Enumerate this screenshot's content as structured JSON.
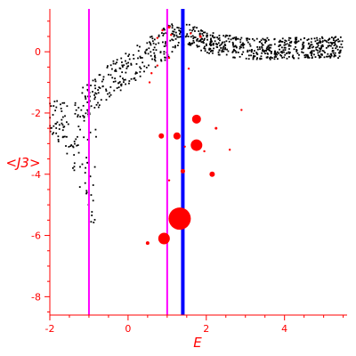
{
  "chart_data": {
    "type": "scatter",
    "title": "",
    "xlabel": "E",
    "ylabel": "<J3>",
    "xlim": [
      -2.0,
      5.6
    ],
    "ylim": [
      -8.6,
      1.4
    ],
    "xticks": [
      -2,
      0,
      2,
      4
    ],
    "yticks": [
      -8,
      -6,
      -4,
      -2,
      0
    ],
    "grid": false,
    "axis_color": "#ff0000",
    "vertical_lines": [
      {
        "x": -1.0,
        "color": "#ff00ff"
      },
      {
        "x": 1.0,
        "color": "#ff00ff"
      },
      {
        "x": 1.4,
        "color": "#0000ff"
      }
    ],
    "series": [
      {
        "marker": "small-dot",
        "color": "#000000",
        "count": 900,
        "description_curve": [
          [
            -2.0,
            -2.65
          ],
          [
            -1.5,
            -3.5
          ],
          [
            -1.0,
            -5.3
          ],
          [
            -0.8,
            -6.4
          ]
        ],
        "upper_branch": [
          [
            -1.0,
            -1.6
          ],
          [
            -0.5,
            -0.95
          ],
          [
            0.0,
            -0.55
          ],
          [
            0.5,
            -0.1
          ],
          [
            1.0,
            0.3
          ],
          [
            1.5,
            0.6
          ],
          [
            2.0,
            0.3
          ],
          [
            3.0,
            0.1
          ],
          [
            4.0,
            0.1
          ],
          [
            5.5,
            0.15
          ]
        ],
        "spread": 0.35
      },
      {
        "marker": "circle",
        "color": "#ff0000",
        "points": [
          {
            "x": 0.88,
            "y": 0.7,
            "s": 1.2
          },
          {
            "x": 0.75,
            "y": 0.45,
            "s": 1.2
          },
          {
            "x": 1.05,
            "y": 0.8,
            "s": 1.5
          },
          {
            "x": 1.1,
            "y": 0.55,
            "s": 1.2
          },
          {
            "x": 1.6,
            "y": 0.6,
            "s": 1.2
          },
          {
            "x": 1.85,
            "y": 0.5,
            "s": 1.5
          },
          {
            "x": 0.75,
            "y": -0.45,
            "s": 1.2
          },
          {
            "x": 1.55,
            "y": -0.55,
            "s": 1.2
          },
          {
            "x": 0.6,
            "y": -0.7,
            "s": 1.2
          },
          {
            "x": 1.05,
            "y": -0.2,
            "s": 1.2
          },
          {
            "x": 0.55,
            "y": -1.0,
            "s": 1.2
          },
          {
            "x": 2.9,
            "y": -1.9,
            "s": 1.2
          },
          {
            "x": 1.75,
            "y": -2.2,
            "s": 5.0
          },
          {
            "x": 0.85,
            "y": -2.75,
            "s": 3.0
          },
          {
            "x": 1.25,
            "y": -2.75,
            "s": 4.0
          },
          {
            "x": 1.45,
            "y": -3.1,
            "s": 1.2
          },
          {
            "x": 1.75,
            "y": -3.05,
            "s": 6.5
          },
          {
            "x": 2.25,
            "y": -2.5,
            "s": 1.5
          },
          {
            "x": 2.6,
            "y": -3.2,
            "s": 1.2
          },
          {
            "x": 1.95,
            "y": -3.25,
            "s": 1.2
          },
          {
            "x": 1.4,
            "y": -3.9,
            "s": 2.5
          },
          {
            "x": 2.15,
            "y": -4.0,
            "s": 3.0
          },
          {
            "x": 1.05,
            "y": -4.2,
            "s": 1.2
          },
          {
            "x": 1.32,
            "y": -5.45,
            "s": 12.5
          },
          {
            "x": 0.92,
            "y": -6.1,
            "s": 6.5
          },
          {
            "x": 0.5,
            "y": -6.25,
            "s": 2.0
          }
        ]
      }
    ]
  }
}
